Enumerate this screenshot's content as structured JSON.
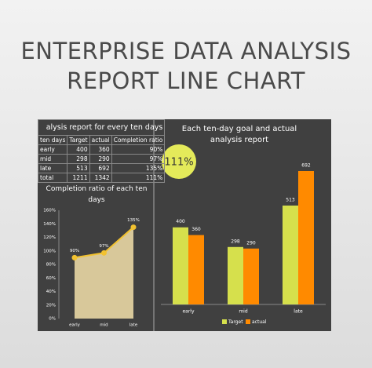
{
  "header": {
    "title_lines": [
      "ENTERPRISE DATA ANALYSIS",
      "REPORT LINE CHART"
    ]
  },
  "table": {
    "caption": "alysis report for every ten days",
    "columns": [
      "ten days",
      "Target",
      "actual",
      "Completion ratio"
    ],
    "rows": [
      [
        "early",
        "400",
        "360",
        "90%"
      ],
      [
        "mid",
        "298",
        "290",
        "97%"
      ],
      [
        "late",
        "513",
        "692",
        "135%"
      ],
      [
        "total",
        "1211",
        "1342",
        "111%"
      ]
    ]
  },
  "chart_data": [
    {
      "type": "area",
      "title": "Completion ratio of each ten days",
      "categories": [
        "early",
        "mid",
        "late"
      ],
      "values": [
        90,
        97,
        135
      ],
      "value_labels": [
        "90%",
        "97%",
        "135%"
      ],
      "color": "#f2c230",
      "fill": "#d8c89a",
      "ylim": [
        0,
        160
      ],
      "yticks": [
        {
          "value": 0,
          "label": "0%"
        },
        {
          "value": 20,
          "label": "20%"
        },
        {
          "value": 40,
          "label": "40%"
        },
        {
          "value": 60,
          "label": "60%"
        },
        {
          "value": 80,
          "label": "80%"
        },
        {
          "value": 100,
          "label": "100%"
        },
        {
          "value": 120,
          "label": "120%"
        },
        {
          "value": 140,
          "label": "140%"
        },
        {
          "value": 160,
          "label": "160%"
        }
      ]
    },
    {
      "type": "bar",
      "title": "Each ten-day goal and actual analysis report",
      "annotation": "111%",
      "categories": [
        "early",
        "mid",
        "late"
      ],
      "series": [
        {
          "name": "Target",
          "color": "#d6e04c",
          "values": [
            400,
            298,
            513
          ]
        },
        {
          "name": "actual",
          "color": "#ff8a00",
          "values": [
            360,
            290,
            692
          ]
        }
      ]
    }
  ]
}
